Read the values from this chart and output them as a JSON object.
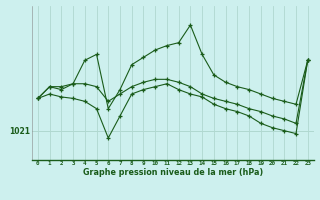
{
  "title": "Graphe pression niveau de la mer (hPa)",
  "background_color": "#cdf0ee",
  "line_color": "#1a5c1a",
  "grid_color": "#b0d8d0",
  "ylabel_tick": 1021,
  "x_hours": [
    0,
    1,
    2,
    3,
    4,
    5,
    6,
    7,
    8,
    9,
    10,
    11,
    12,
    13,
    14,
    15,
    16,
    17,
    18,
    19,
    20,
    21,
    22,
    23
  ],
  "series": [
    [
      1023.2,
      1024.0,
      1023.8,
      1024.2,
      1025.8,
      1026.2,
      1022.5,
      1023.8,
      1025.5,
      1026.0,
      1026.5,
      1026.8,
      1027.0,
      1028.2,
      1026.2,
      1024.8,
      1024.3,
      1024.0,
      1023.8,
      1023.5,
      1023.2,
      1023.0,
      1022.8,
      1025.8
    ],
    [
      1023.2,
      1024.0,
      1024.0,
      1024.2,
      1024.2,
      1024.0,
      1023.0,
      1023.5,
      1024.0,
      1024.3,
      1024.5,
      1024.5,
      1024.3,
      1024.0,
      1023.5,
      1023.2,
      1023.0,
      1022.8,
      1022.5,
      1022.3,
      1022.0,
      1021.8,
      1021.5,
      1025.8
    ],
    [
      1023.2,
      1023.5,
      1023.3,
      1023.2,
      1023.0,
      1022.5,
      1020.5,
      1022.0,
      1023.5,
      1023.8,
      1024.0,
      1024.2,
      1023.8,
      1023.5,
      1023.3,
      1022.8,
      1022.5,
      1022.3,
      1022.0,
      1021.5,
      1021.2,
      1021.0,
      1020.8,
      1025.8
    ]
  ],
  "ylim": [
    1019.0,
    1029.5
  ],
  "xlim": [
    -0.5,
    23.5
  ],
  "figsize": [
    3.2,
    2.0
  ],
  "dpi": 100
}
